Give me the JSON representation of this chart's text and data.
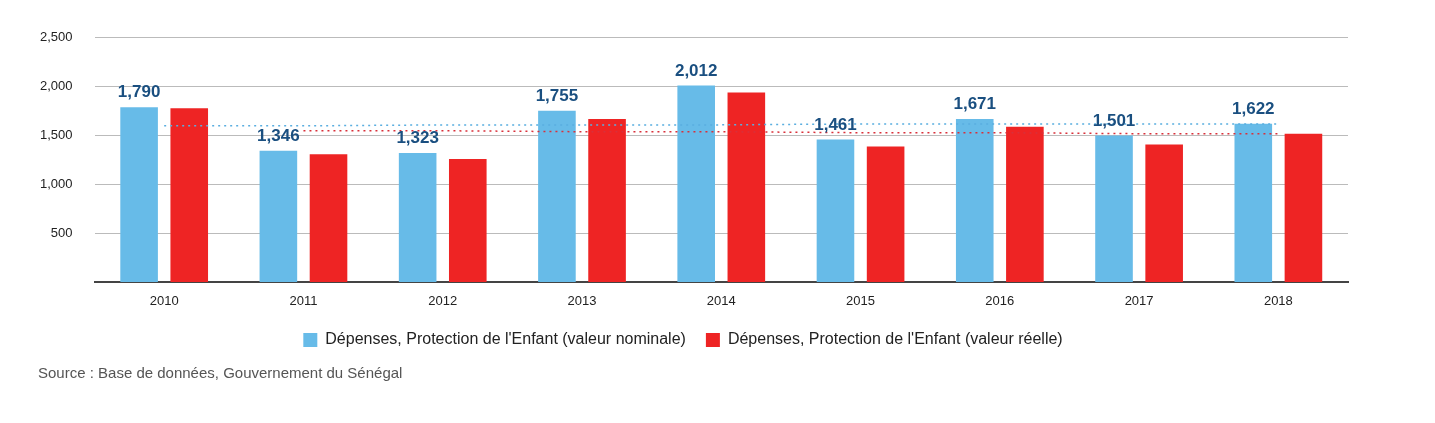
{
  "chart_data": {
    "type": "bar",
    "categories": [
      "2010",
      "2011",
      "2012",
      "2013",
      "2014",
      "2015",
      "2016",
      "2017",
      "2018"
    ],
    "series": [
      {
        "name": "Dépenses, Protection de l'Enfant (valeur nominale)",
        "color": "#67bbe8",
        "values": [
          1790,
          1346,
          1323,
          1755,
          2012,
          1461,
          1671,
          1501,
          1622
        ],
        "value_labels": [
          "1,790",
          "1,346",
          "1,323",
          "1,755",
          "2,012",
          "1,461",
          "1,671",
          "1,501",
          "1,622"
        ]
      },
      {
        "name": "Dépenses, Protection de l'Enfant (valeur réelle)",
        "color": "#ee2424",
        "values": [
          1780,
          1310,
          1260,
          1670,
          1940,
          1390,
          1590,
          1410,
          1520
        ]
      },
      {
        "type": "line",
        "color": "#5aaee0",
        "values": [
          1600,
          1600,
          1610,
          1610,
          1610,
          1620,
          1620,
          1620,
          1620
        ],
        "line_style": "dotted",
        "marker": "none"
      },
      {
        "type": "line",
        "color": "#d9303a",
        "values": [
          null,
          1550,
          1550,
          1540,
          1540,
          1530,
          1530,
          1520,
          1520
        ],
        "line_style": "dotted",
        "marker": "none"
      }
    ],
    "ylim": [
      0,
      2500
    ],
    "yticks": [
      {
        "value": 0,
        "label": null
      },
      500,
      {
        "value": 1000,
        "label": "1,000"
      },
      {
        "value": 1500,
        "label": "1,500"
      },
      {
        "value": 2000,
        "label": "2,000"
      },
      {
        "value": 2500,
        "label": "2,500"
      }
    ],
    "grid": "y",
    "legend": "bottom",
    "annotations": [
      "Source : Base de données, Gouvernement du Sénégal"
    ]
  }
}
